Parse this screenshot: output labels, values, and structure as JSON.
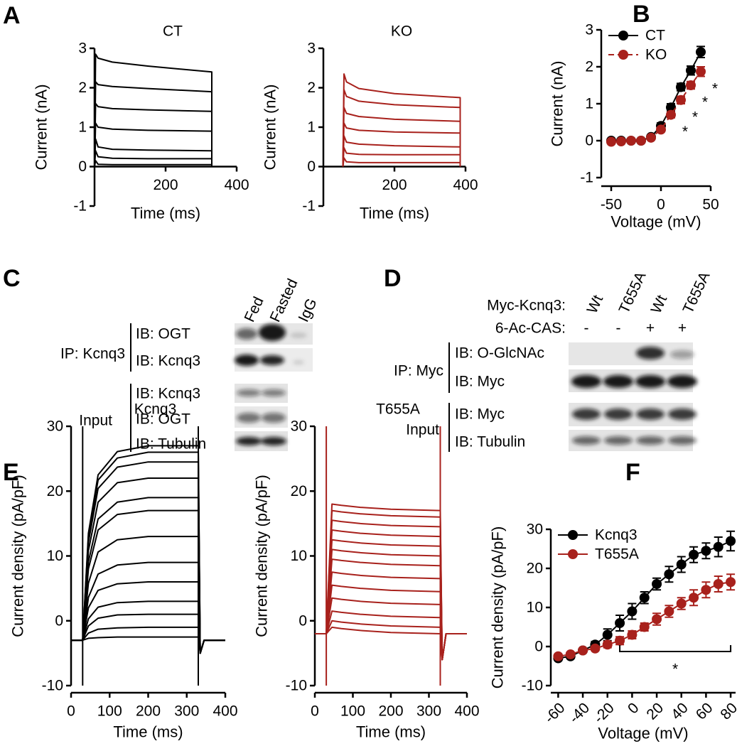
{
  "panel_labels": [
    "A",
    "B",
    "C",
    "D",
    "E",
    "F"
  ],
  "chart_data": [
    {
      "type": "line",
      "title": "CT",
      "xlabel": "Time (ms)",
      "ylabel": "Current (nA)",
      "xlim": [
        0,
        400
      ],
      "ylim": [
        -1,
        3
      ],
      "xticks": [
        200,
        400
      ],
      "yticks": [
        -1,
        0,
        1,
        2,
        3
      ],
      "x": [
        0,
        3,
        10,
        50,
        150,
        330,
        330
      ],
      "series": [
        {
          "color": "#000000",
          "values": [
            0,
            2.85,
            2.75,
            2.65,
            2.55,
            2.4,
            0
          ]
        },
        {
          "color": "#000000",
          "values": [
            0,
            2.15,
            2.08,
            2.03,
            1.98,
            1.9,
            0
          ]
        },
        {
          "color": "#000000",
          "values": [
            0,
            1.6,
            1.52,
            1.47,
            1.44,
            1.4,
            0
          ]
        },
        {
          "color": "#000000",
          "values": [
            0,
            1.1,
            1.0,
            0.95,
            0.92,
            0.9,
            0
          ]
        },
        {
          "color": "#000000",
          "values": [
            0,
            0.7,
            0.5,
            0.44,
            0.42,
            0.4,
            0
          ]
        },
        {
          "color": "#000000",
          "values": [
            0,
            0.4,
            0.25,
            0.21,
            0.2,
            0.2,
            0
          ]
        },
        {
          "color": "#000000",
          "values": [
            0,
            0.15,
            0.06,
            0.05,
            0.05,
            0.05,
            0
          ]
        }
      ]
    },
    {
      "type": "line",
      "title": "KO",
      "xlabel": "Time (ms)",
      "ylabel": "Current (nA)",
      "xlim": [
        0,
        400
      ],
      "ylim": [
        -1,
        3
      ],
      "xticks": [
        200,
        400
      ],
      "yticks": [
        -1,
        0,
        1,
        2,
        3
      ],
      "x": [
        55,
        58,
        65,
        100,
        200,
        385,
        385
      ],
      "series": [
        {
          "color": "#a8211c",
          "values": [
            0,
            2.35,
            2.15,
            1.98,
            1.85,
            1.75,
            0
          ]
        },
        {
          "color": "#a8211c",
          "values": [
            0,
            1.95,
            1.78,
            1.66,
            1.57,
            1.5,
            0
          ]
        },
        {
          "color": "#a8211c",
          "values": [
            0,
            1.5,
            1.35,
            1.27,
            1.2,
            1.15,
            0
          ]
        },
        {
          "color": "#a8211c",
          "values": [
            0,
            1.1,
            0.98,
            0.92,
            0.88,
            0.85,
            0
          ]
        },
        {
          "color": "#a8211c",
          "values": [
            0,
            0.78,
            0.62,
            0.57,
            0.53,
            0.5,
            0
          ]
        },
        {
          "color": "#a8211c",
          "values": [
            0,
            0.48,
            0.34,
            0.31,
            0.3,
            0.3,
            0
          ]
        },
        {
          "color": "#a8211c",
          "values": [
            0,
            0.22,
            0.12,
            0.1,
            0.1,
            0.1,
            0
          ]
        }
      ]
    },
    {
      "type": "line",
      "xlabel": "Voltage (mV)",
      "ylabel": "Current (nA)",
      "xlim": [
        -60,
        50
      ],
      "ylim": [
        -1,
        3
      ],
      "xticks": [
        -50,
        0,
        50
      ],
      "yticks": [
        -1,
        0,
        1,
        2,
        3
      ],
      "markers": true,
      "legend": "upper left",
      "x": [
        -50,
        -40,
        -30,
        -20,
        -10,
        0,
        10,
        20,
        30,
        40
      ],
      "series": [
        {
          "name": "CT",
          "color": "#000000",
          "values": [
            0,
            0,
            0,
            0,
            0.1,
            0.4,
            0.9,
            1.45,
            1.9,
            2.4
          ],
          "errors": [
            0.03,
            0.03,
            0.03,
            0.03,
            0.04,
            0.08,
            0.1,
            0.1,
            0.12,
            0.15
          ]
        },
        {
          "name": "KO",
          "color": "#a8211c",
          "dash": true,
          "values": [
            -0.03,
            -0.02,
            0,
            0,
            0.08,
            0.3,
            0.7,
            1.1,
            1.5,
            1.87
          ],
          "errors": [
            0.03,
            0.03,
            0.03,
            0.03,
            0.04,
            0.06,
            0.08,
            0.1,
            0.1,
            0.13
          ]
        }
      ],
      "annotation": "*",
      "significant_x": [
        10,
        20,
        30,
        40
      ]
    },
    {
      "type": "line",
      "title": "Kcnq3",
      "xlabel": "Time (ms)",
      "ylabel": "Current density (pA/pF)",
      "xlim": [
        0,
        400
      ],
      "ylim": [
        -10,
        30
      ],
      "xticks": [
        0,
        100,
        200,
        300,
        400
      ],
      "yticks": [
        -10,
        0,
        10,
        20,
        30
      ],
      "x": [
        0,
        30,
        45,
        70,
        120,
        200,
        330,
        335,
        345,
        400
      ],
      "series": [
        {
          "color": "#000000",
          "values": [
            -3,
            -3,
            13.5,
            22.5,
            26.1,
            27,
            27,
            -5,
            -3,
            -3
          ]
        },
        {
          "color": "#000000",
          "values": [
            -3,
            -3,
            13,
            21.7,
            25.1,
            26,
            26,
            -5,
            -3,
            -3
          ]
        },
        {
          "color": "#000000",
          "values": [
            -3,
            -3,
            12.1,
            20.4,
            23.7,
            24.5,
            24.5,
            -5,
            -3,
            -3
          ]
        },
        {
          "color": "#000000",
          "values": [
            -3,
            -3,
            10.8,
            18.3,
            21.3,
            22,
            22,
            -5,
            -3,
            -3
          ]
        },
        {
          "color": "#000000",
          "values": [
            -3,
            -3,
            9.1,
            15.7,
            18.3,
            19,
            19,
            -5,
            -3,
            -3
          ]
        },
        {
          "color": "#000000",
          "values": [
            -3,
            -3,
            8,
            14,
            16.4,
            17,
            17,
            -5,
            -3,
            -3
          ]
        },
        {
          "color": "#000000",
          "values": [
            -3,
            -3,
            5.8,
            10.6,
            12.5,
            13,
            13,
            -5,
            -3,
            -3
          ]
        },
        {
          "color": "#000000",
          "values": [
            -3,
            -3,
            3.6,
            7.2,
            8.6,
            9,
            9,
            -5,
            -3,
            -3
          ]
        },
        {
          "color": "#000000",
          "values": [
            -3,
            -3,
            2,
            4.7,
            5.7,
            6,
            6,
            -5,
            -3,
            -3
          ]
        },
        {
          "color": "#000000",
          "values": [
            -3,
            -3,
            0.3,
            2.1,
            2.8,
            3,
            3,
            -5,
            -3,
            -3
          ]
        },
        {
          "color": "#000000",
          "values": [
            -3,
            -3,
            -0.8,
            0.4,
            0.9,
            1,
            1,
            -5,
            -3,
            -3
          ]
        },
        {
          "color": "#000000",
          "values": [
            -3,
            -3,
            -1.9,
            -1.3,
            -1.1,
            -1,
            -1,
            -5,
            -3,
            -3
          ]
        },
        {
          "color": "#000000",
          "values": [
            -3,
            -3,
            -2.7,
            -2.6,
            -2.5,
            -2.5,
            -2.5,
            -5,
            -3,
            -3
          ]
        },
        {
          "color": "#000000",
          "x": [
            30,
            30,
            30,
            330,
            330
          ],
          "values": [
            -10,
            30,
            null,
            -10,
            30
          ]
        }
      ]
    },
    {
      "type": "line",
      "title": "T655A",
      "xlabel": "Time (ms)",
      "ylabel": "Current density (pA/pF)",
      "xlim": [
        0,
        400
      ],
      "ylim": [
        -10,
        30
      ],
      "xticks": [
        0,
        100,
        200,
        300,
        400
      ],
      "yticks": [
        -10,
        0,
        10,
        20,
        30
      ],
      "x": [
        0,
        30,
        45,
        70,
        120,
        200,
        330,
        335,
        345,
        400
      ],
      "series": [
        {
          "color": "#a8211c",
          "values": [
            -2,
            -2,
            18,
            17.8,
            17.5,
            17.2,
            17,
            -6,
            -2,
            -2
          ]
        },
        {
          "color": "#a8211c",
          "values": [
            -2,
            -2,
            17,
            16.8,
            16.5,
            16.2,
            16,
            -6,
            -2,
            -2
          ]
        },
        {
          "color": "#a8211c",
          "values": [
            -2,
            -2,
            15.5,
            15.3,
            15,
            14.7,
            14.5,
            -6,
            -2,
            -2
          ]
        },
        {
          "color": "#a8211c",
          "values": [
            -2,
            -2,
            14,
            13.8,
            13.5,
            13.2,
            13,
            -6,
            -2,
            -2
          ]
        },
        {
          "color": "#a8211c",
          "values": [
            -2,
            -2,
            12.5,
            12.3,
            12,
            11.7,
            11.5,
            -6,
            -2,
            -2
          ]
        },
        {
          "color": "#a8211c",
          "values": [
            -2,
            -2,
            11,
            10.8,
            10.5,
            10.2,
            10,
            -6,
            -2,
            -2
          ]
        },
        {
          "color": "#a8211c",
          "values": [
            -2,
            -2,
            9.5,
            9.3,
            9,
            8.7,
            8.5,
            -6,
            -2,
            -2
          ]
        },
        {
          "color": "#a8211c",
          "values": [
            -2,
            -2,
            7.5,
            7.3,
            7,
            6.7,
            6.5,
            -6,
            -2,
            -2
          ]
        },
        {
          "color": "#a8211c",
          "values": [
            -2,
            -2,
            5.5,
            5.3,
            5,
            4.7,
            4.5,
            -6,
            -2,
            -2
          ]
        },
        {
          "color": "#a8211c",
          "values": [
            -2,
            -2,
            3.5,
            3.3,
            3,
            2.7,
            2.5,
            -6,
            -2,
            -2
          ]
        },
        {
          "color": "#a8211c",
          "values": [
            -2,
            -2,
            1.5,
            1.3,
            1,
            0.7,
            0.5,
            -6,
            -2,
            -2
          ]
        },
        {
          "color": "#a8211c",
          "values": [
            -2,
            -2,
            0,
            -0.2,
            -0.5,
            -0.8,
            -1,
            -6,
            -2,
            -2
          ]
        },
        {
          "color": "#a8211c",
          "values": [
            -2,
            -2,
            -1,
            -1.2,
            -1.5,
            -1.8,
            -2,
            -6,
            -2,
            -2
          ]
        },
        {
          "color": "#a8211c",
          "x": [
            30,
            30,
            30,
            330,
            330
          ],
          "values": [
            -10,
            30,
            null,
            -10,
            30
          ]
        }
      ]
    },
    {
      "type": "line",
      "xlabel": "Voltage (mV)",
      "ylabel": "Current density (pA/pF)",
      "xlim": [
        -66,
        84
      ],
      "ylim": [
        -10,
        30
      ],
      "xticks": [
        -60,
        -40,
        -20,
        0,
        20,
        40,
        60,
        80
      ],
      "yticks": [
        -10,
        0,
        10,
        20,
        30
      ],
      "markers": true,
      "legend": "upper left",
      "x": [
        -60,
        -50,
        -40,
        -30,
        -20,
        -10,
        0,
        10,
        20,
        30,
        40,
        50,
        60,
        70,
        80
      ],
      "series": [
        {
          "name": "Kcnq3",
          "color": "#000000",
          "values": [
            -3,
            -2.5,
            -1,
            0.5,
            3,
            6,
            9,
            12.5,
            16,
            18.5,
            21,
            23.5,
            24.5,
            25.5,
            27
          ],
          "errors": [
            0.5,
            0.5,
            0.5,
            0.8,
            1.5,
            2,
            2,
            1.5,
            1.5,
            2,
            2,
            2,
            2,
            2.5,
            2.5
          ]
        },
        {
          "name": "T655A",
          "color": "#a8211c",
          "values": [
            -2.5,
            -2,
            -1,
            -0.5,
            0.5,
            1.5,
            3,
            5,
            7,
            9,
            11,
            12.5,
            14.5,
            16,
            16.5
          ],
          "errors": [
            0.5,
            0.5,
            0.5,
            0.5,
            0.8,
            1,
            1,
            1,
            1.5,
            1.5,
            1.5,
            2,
            2,
            2,
            2
          ]
        }
      ],
      "significance": {
        "label": "*",
        "x": [
          -10,
          80
        ]
      }
    }
  ],
  "panel_c": {
    "columns": [
      "Fed",
      "Fasted",
      "IgG"
    ],
    "ip_group": {
      "label": "IP: Kcnq3",
      "rows": [
        "IB: OGT",
        "IB: Kcnq3"
      ]
    },
    "input_group": {
      "label": "Input",
      "rows": [
        "IB: Kcnq3",
        "IB: OGT",
        "IB: Tubulin"
      ]
    }
  },
  "panel_d": {
    "header_rows": [
      {
        "label": "Myc-Kcnq3:",
        "values": [
          "Wt",
          "T655A",
          "Wt",
          "T655A"
        ]
      },
      {
        "label": "6-Ac-CAS:",
        "values": [
          "-",
          "-",
          "+",
          "+"
        ]
      }
    ],
    "ip_group": {
      "label": "IP: Myc",
      "rows": [
        "IB: O-GlcNAc",
        "IB: Myc"
      ]
    },
    "input_group": {
      "label": "Input",
      "rows": [
        "IB: Myc",
        "IB: Tubulin"
      ]
    }
  }
}
